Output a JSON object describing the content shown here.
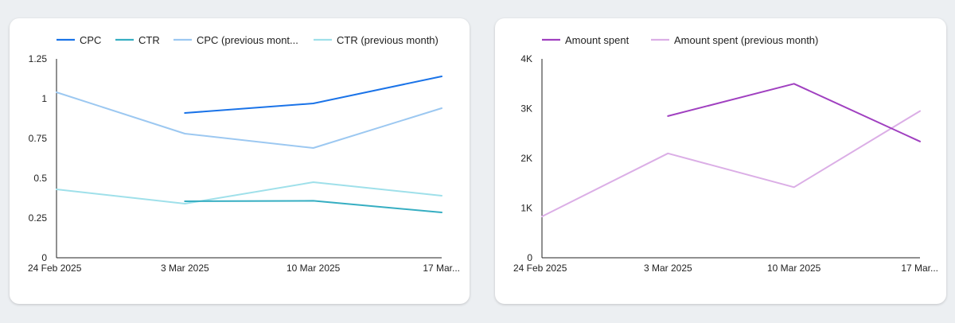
{
  "chart_data": [
    {
      "type": "line",
      "categories": [
        "24 Feb 2025",
        "3 Mar 2025",
        "10 Mar 2025",
        "17 Mar..."
      ],
      "ylim": [
        0,
        1.25
      ],
      "yticks": [
        "0",
        "0.25",
        "0.5",
        "0.75",
        "1",
        "1.25"
      ],
      "ytick_values": [
        0,
        0.25,
        0.5,
        0.75,
        1,
        1.25
      ],
      "series": [
        {
          "name": "CPC",
          "color": "#1a73e8",
          "width": 2,
          "values": [
            null,
            0.91,
            0.97,
            1.14
          ]
        },
        {
          "name": "CTR",
          "color": "#36aec2",
          "width": 2,
          "values": [
            null,
            0.355,
            0.358,
            0.285
          ]
        },
        {
          "name": "CPC (previous mont...",
          "color": "#9cc8f1",
          "width": 2,
          "values": [
            1.04,
            0.78,
            0.69,
            0.94
          ]
        },
        {
          "name": "CTR (previous month)",
          "color": "#9fe0ea",
          "width": 2,
          "values": [
            0.43,
            0.34,
            0.475,
            0.39
          ]
        }
      ]
    },
    {
      "type": "line",
      "categories": [
        "24 Feb 2025",
        "3 Mar 2025",
        "10 Mar 2025",
        "17 Mar..."
      ],
      "ylim": [
        0,
        4000
      ],
      "yticks": [
        "0",
        "1K",
        "2K",
        "3K",
        "4K"
      ],
      "ytick_values": [
        0,
        1000,
        2000,
        3000,
        4000
      ],
      "series": [
        {
          "name": "Amount spent",
          "color": "#a040c0",
          "width": 2,
          "values": [
            null,
            2850,
            3500,
            2340
          ]
        },
        {
          "name": "Amount spent (previous month)",
          "color": "#dbaee6",
          "width": 2,
          "values": [
            830,
            2100,
            1420,
            2950
          ]
        }
      ]
    }
  ]
}
